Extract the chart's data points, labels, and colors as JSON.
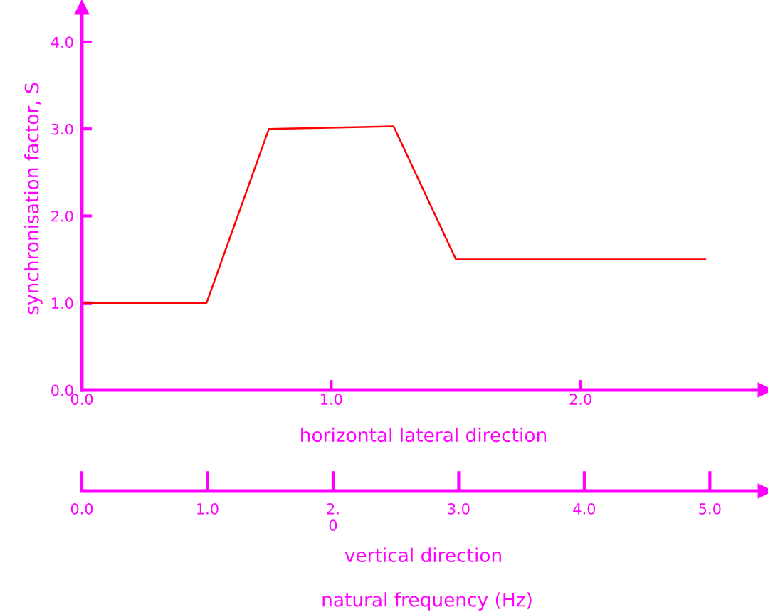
{
  "chart_data": {
    "type": "line",
    "xlabel": "horizontal lateral direction",
    "ylabel": "synchronisation factor, S",
    "x": [
      0,
      0.5,
      0.75,
      1.25,
      1.5,
      2.5
    ],
    "series": [
      {
        "color": "#ff0000",
        "values": [
          1.0,
          1.0,
          3.0,
          3.03,
          1.5,
          1.5
        ]
      }
    ],
    "xlim": [
      0,
      2.74
    ],
    "xticks": [
      {
        "value": 0,
        "label": "0.0"
      },
      {
        "value": 1,
        "label": "1.0"
      },
      {
        "value": 2,
        "label": "2.0"
      }
    ],
    "ylim": [
      0,
      4.4
    ],
    "yticks": [
      {
        "value": 0,
        "label": "0.0"
      },
      {
        "value": 1,
        "label": "1.0"
      },
      {
        "value": 2,
        "label": "2.0"
      },
      {
        "value": 3,
        "label": "3.0"
      },
      {
        "value": 4,
        "label": "4.0"
      }
    ],
    "x2label": "vertical direction",
    "x2lim": [
      0,
      5.44
    ],
    "x2ticks": [
      {
        "value": 0,
        "label": "0.0"
      },
      {
        "value": 1,
        "label": "1.0"
      },
      {
        "value": 2,
        "label": "2.\n0"
      },
      {
        "value": 3,
        "label": "3.0"
      },
      {
        "value": 4,
        "label": "4.0"
      },
      {
        "value": 5,
        "label": "5.0"
      }
    ],
    "annotations": [
      "natural frequency (Hz)"
    ],
    "grid": false,
    "legend": false,
    "marker": "none",
    "line_style": "solid"
  }
}
